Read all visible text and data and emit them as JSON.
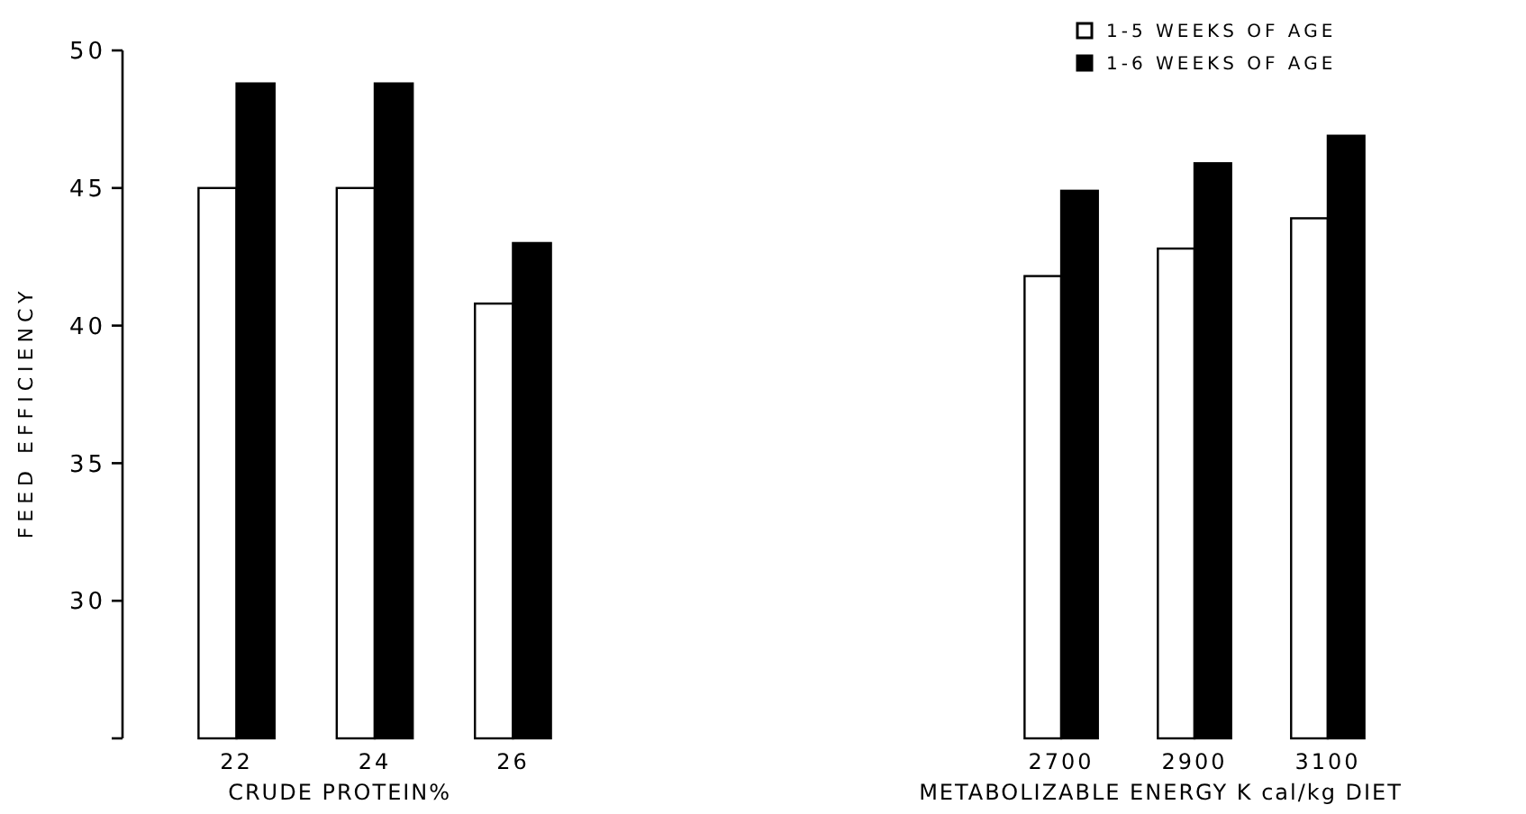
{
  "chart_data": [
    {
      "type": "bar",
      "ylabel": "FEED EFFICIENCY",
      "xlabel": "CRUDE PROTEIN%",
      "categories": [
        "22",
        "24",
        "26"
      ],
      "ylim": [
        25,
        50
      ],
      "yticks": [
        30,
        35,
        40,
        45,
        50
      ],
      "grid": false,
      "legend": false,
      "series": [
        {
          "color": "#ffffff",
          "values": [
            45,
            45,
            40.8
          ]
        },
        {
          "color": "#000000",
          "values": [
            48.8,
            48.8,
            43
          ]
        }
      ]
    },
    {
      "type": "bar",
      "xlabel": "METABOLIZABLE ENERGY K cal/kg DIET",
      "categories": [
        "2700",
        "2900",
        "3100"
      ],
      "ylim": [
        25,
        50
      ],
      "yticks": [
        30,
        35,
        40,
        45,
        50
      ],
      "tick_labels": "x",
      "grid": false,
      "legend": "top right",
      "series": [
        {
          "name": "1-5 WEEKS OF AGE",
          "color": "#ffffff",
          "values": [
            41.8,
            42.8,
            43.9
          ]
        },
        {
          "name": "1-6 WEEKS OF AGE",
          "color": "#000000",
          "values": [
            44.9,
            45.9,
            46.9
          ]
        }
      ]
    }
  ]
}
